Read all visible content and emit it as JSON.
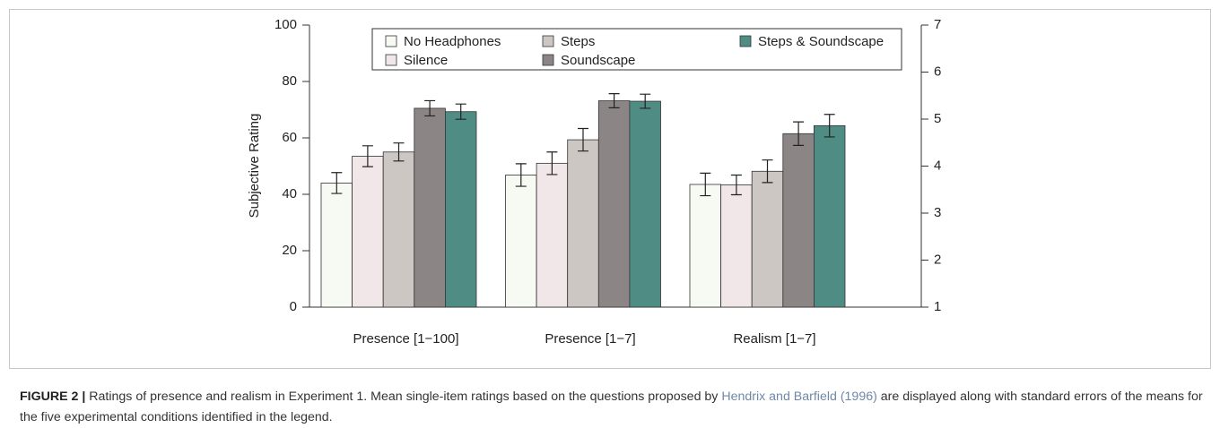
{
  "chart_data": {
    "type": "bar",
    "y_label": "Subjective Rating",
    "categories": [
      "Presence [1−100]",
      "Presence [1−7]",
      "Realism [1−7]"
    ],
    "category_axes": [
      "y",
      "y2",
      "y2"
    ],
    "series": [
      {
        "name": "No Headphones",
        "color": "#f7f9f3",
        "values": [
          44,
          3.81,
          3.61
        ],
        "errors": [
          3.7,
          0.24,
          0.24
        ]
      },
      {
        "name": "Silence",
        "color": "#f1e6e8",
        "values": [
          53.5,
          4.06,
          3.6
        ],
        "errors": [
          3.7,
          0.24,
          0.21
        ]
      },
      {
        "name": "Steps",
        "color": "#cdc7c3",
        "values": [
          55,
          4.56,
          3.89
        ],
        "errors": [
          3.2,
          0.24,
          0.24
        ]
      },
      {
        "name": "Soundscape",
        "color": "#8c8585",
        "values": [
          70.5,
          5.39,
          4.69
        ],
        "errors": [
          2.7,
          0.15,
          0.25
        ]
      },
      {
        "name": "Steps & Soundscape",
        "color": "#4f8c84",
        "values": [
          69.3,
          5.38,
          4.86
        ],
        "errors": [
          2.7,
          0.15,
          0.24
        ]
      }
    ],
    "ylim": [
      0,
      100
    ],
    "yticks": [
      0,
      20,
      40,
      60,
      80,
      100
    ],
    "y2lim": [
      1,
      7
    ],
    "y2ticks": [
      1,
      2,
      3,
      4,
      5,
      6,
      7
    ],
    "legend": "top"
  },
  "caption": {
    "label": "FIGURE 2 |",
    "text_before": " Ratings of presence and realism in Experiment 1. Mean single-item ratings based on the questions proposed by ",
    "citation": "Hendrix and Barfield (1996)",
    "text_after": " are displayed along with standard errors of the means for the five experimental conditions identified in the legend."
  }
}
